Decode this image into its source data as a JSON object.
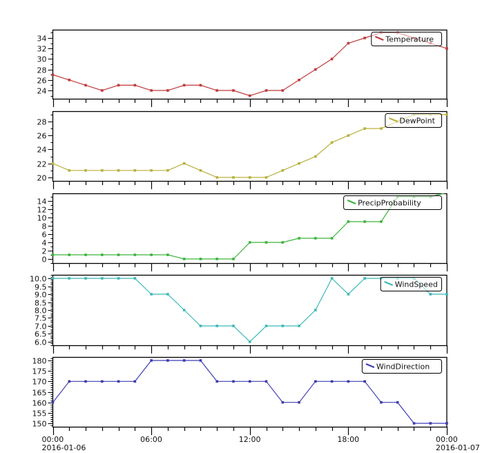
{
  "chart_data": [
    {
      "type": "line",
      "name": "Temperature",
      "legend": "Temperature",
      "color": "#c0393b",
      "ylim": [
        22.42,
        35.58
      ],
      "yticks_major": [
        24,
        26,
        28,
        30,
        32,
        34
      ],
      "ytick_labels": [
        "24",
        "26",
        "28",
        "30",
        "32",
        "34"
      ],
      "yticks_minor_step": 1,
      "x_hours": [
        0,
        1,
        2,
        3,
        4,
        5,
        6,
        7,
        8,
        9,
        10,
        11,
        12,
        13,
        14,
        15,
        16,
        17,
        18,
        19,
        20,
        21,
        22,
        23,
        24
      ],
      "values": [
        27,
        26,
        25,
        24,
        25,
        25,
        24,
        24,
        25,
        25,
        24,
        24,
        23,
        24,
        24,
        26,
        28,
        30,
        33,
        34,
        35,
        35,
        34,
        33,
        32
      ]
    },
    {
      "type": "line",
      "name": "DewPoint",
      "legend": "DewPoint",
      "color": "#b8b03c",
      "ylim": [
        19.5,
        29.48
      ],
      "yticks_major": [
        20,
        22,
        24,
        26,
        28
      ],
      "ytick_labels": [
        "20",
        "22",
        "24",
        "26",
        "28"
      ],
      "yticks_minor_step": 1,
      "x_hours": [
        0,
        1,
        2,
        3,
        4,
        5,
        6,
        7,
        8,
        9,
        10,
        11,
        12,
        13,
        14,
        15,
        16,
        17,
        18,
        19,
        20,
        21,
        22,
        23,
        24
      ],
      "values": [
        22,
        21,
        21,
        21,
        21,
        21,
        21,
        21,
        22,
        21,
        20,
        20,
        20,
        20,
        21,
        22,
        23,
        25,
        26,
        27,
        27,
        28,
        29,
        29,
        29
      ]
    },
    {
      "type": "line",
      "name": "PrecipProbability",
      "legend": "PrecipProbability",
      "color": "#3cb43c",
      "ylim": [
        -1,
        15.83
      ],
      "yticks_major": [
        0,
        2,
        4,
        6,
        8,
        10,
        12,
        14
      ],
      "ytick_labels": [
        "0",
        "2",
        "4",
        "6",
        "8",
        "10",
        "12",
        "14"
      ],
      "yticks_minor_step": 1,
      "x_hours": [
        0,
        1,
        2,
        3,
        4,
        5,
        6,
        7,
        8,
        9,
        10,
        11,
        12,
        13,
        14,
        15,
        16,
        17,
        18,
        19,
        20,
        21,
        22,
        23,
        24
      ],
      "values": [
        1,
        1,
        1,
        1,
        1,
        1,
        1,
        1,
        0,
        0,
        0,
        0,
        4,
        4,
        4,
        5,
        5,
        5,
        9,
        9,
        9,
        15,
        15,
        15,
        16
      ]
    },
    {
      "type": "line",
      "name": "WindSpeed",
      "legend": "WindSpeed",
      "color": "#3cb8b8",
      "ylim": [
        5.78,
        10.22
      ],
      "yticks_major": [
        6.0,
        6.5,
        7.0,
        7.5,
        8.0,
        8.5,
        9.0,
        9.5,
        10.0
      ],
      "ytick_labels": [
        "6.0",
        "6.5",
        "7.0",
        "7.5",
        "8.0",
        "8.5",
        "9.0",
        "9.5",
        "10.0"
      ],
      "yticks_minor_step": 0.1,
      "x_hours": [
        0,
        1,
        2,
        3,
        4,
        5,
        6,
        7,
        8,
        9,
        10,
        11,
        12,
        13,
        14,
        15,
        16,
        17,
        18,
        19,
        20,
        21,
        22,
        23,
        24
      ],
      "values": [
        10,
        10,
        10,
        10,
        10,
        10,
        9,
        9,
        8,
        7,
        7,
        7,
        6,
        7,
        7,
        7,
        8,
        10,
        9,
        10,
        10,
        10,
        10,
        9,
        9
      ]
    },
    {
      "type": "line",
      "name": "WindDirection",
      "legend": "WindDirection",
      "color": "#3c3cb4",
      "ylim": [
        148.35,
        181.65
      ],
      "yticks_major": [
        150,
        155,
        160,
        165,
        170,
        175,
        180
      ],
      "ytick_labels": [
        "150",
        "155",
        "160",
        "165",
        "170",
        "175",
        "180"
      ],
      "yticks_minor_step": 1,
      "x_hours": [
        0,
        1,
        2,
        3,
        4,
        5,
        6,
        7,
        8,
        9,
        10,
        11,
        12,
        13,
        14,
        15,
        16,
        17,
        18,
        19,
        20,
        21,
        22,
        23,
        24
      ],
      "values": [
        160,
        170,
        170,
        170,
        170,
        170,
        180,
        180,
        180,
        180,
        170,
        170,
        170,
        170,
        160,
        160,
        170,
        170,
        170,
        170,
        160,
        160,
        150,
        150,
        150
      ]
    }
  ],
  "x_axis": {
    "xlim_hours": [
      0,
      24
    ],
    "major_ticks_hours": [
      0,
      6,
      12,
      18,
      24
    ],
    "tick_labels": [
      "00:00",
      "06:00",
      "12:00",
      "18:00",
      "00:00"
    ],
    "date_labels": [
      "2016-01-06",
      "",
      "",
      "",
      "2016-01-07"
    ],
    "minor_step_hours": 1
  }
}
